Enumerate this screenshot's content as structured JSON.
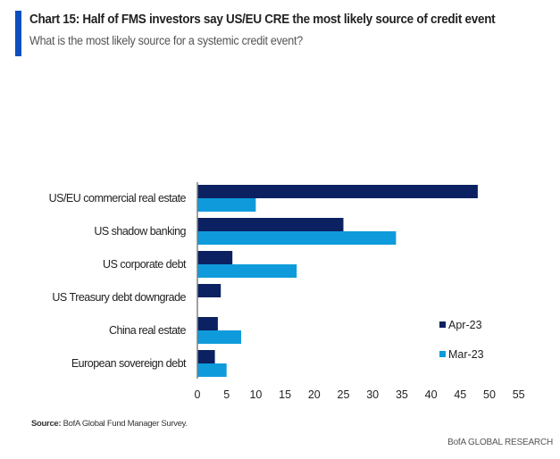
{
  "header": {
    "title": "Chart 15: Half of FMS investors say US/EU CRE the most likely source of credit event",
    "subtitle": "What is the most likely source for a systemic credit event?"
  },
  "footer": {
    "source_label": "Source:",
    "source_text": " BofA Global Fund Manager Survey.",
    "brand": "BofA GLOBAL RESEARCH"
  },
  "colors": {
    "accent": "#0b4fbf",
    "apr": "#0b2161",
    "mar": "#0f9bdb",
    "axis": "#808080"
  },
  "chart_data": {
    "type": "bar",
    "orientation": "horizontal",
    "title": "Chart 15: Half of FMS investors say US/EU CRE the most likely source of credit event",
    "subtitle": "What is the most likely source for a systemic credit event?",
    "xlabel": "",
    "ylabel": "",
    "categories": [
      "US/EU commercial real estate",
      "US shadow banking",
      "US corporate debt",
      "US Treasury debt downgrade",
      "China real estate",
      "European sovereign debt"
    ],
    "series": [
      {
        "name": "Apr-23",
        "color": "#0b2161",
        "values": [
          48,
          25,
          6,
          4,
          3.5,
          3
        ]
      },
      {
        "name": "Mar-23",
        "color": "#0f9bdb",
        "values": [
          10,
          34,
          17,
          0,
          7.5,
          5
        ]
      }
    ],
    "xlim": [
      0,
      55
    ],
    "xticks": [
      0,
      5,
      10,
      15,
      20,
      25,
      30,
      35,
      40,
      45,
      50,
      55
    ],
    "grid": false,
    "legend": {
      "position": "right",
      "entries": [
        "Apr-23",
        "Mar-23"
      ]
    }
  }
}
